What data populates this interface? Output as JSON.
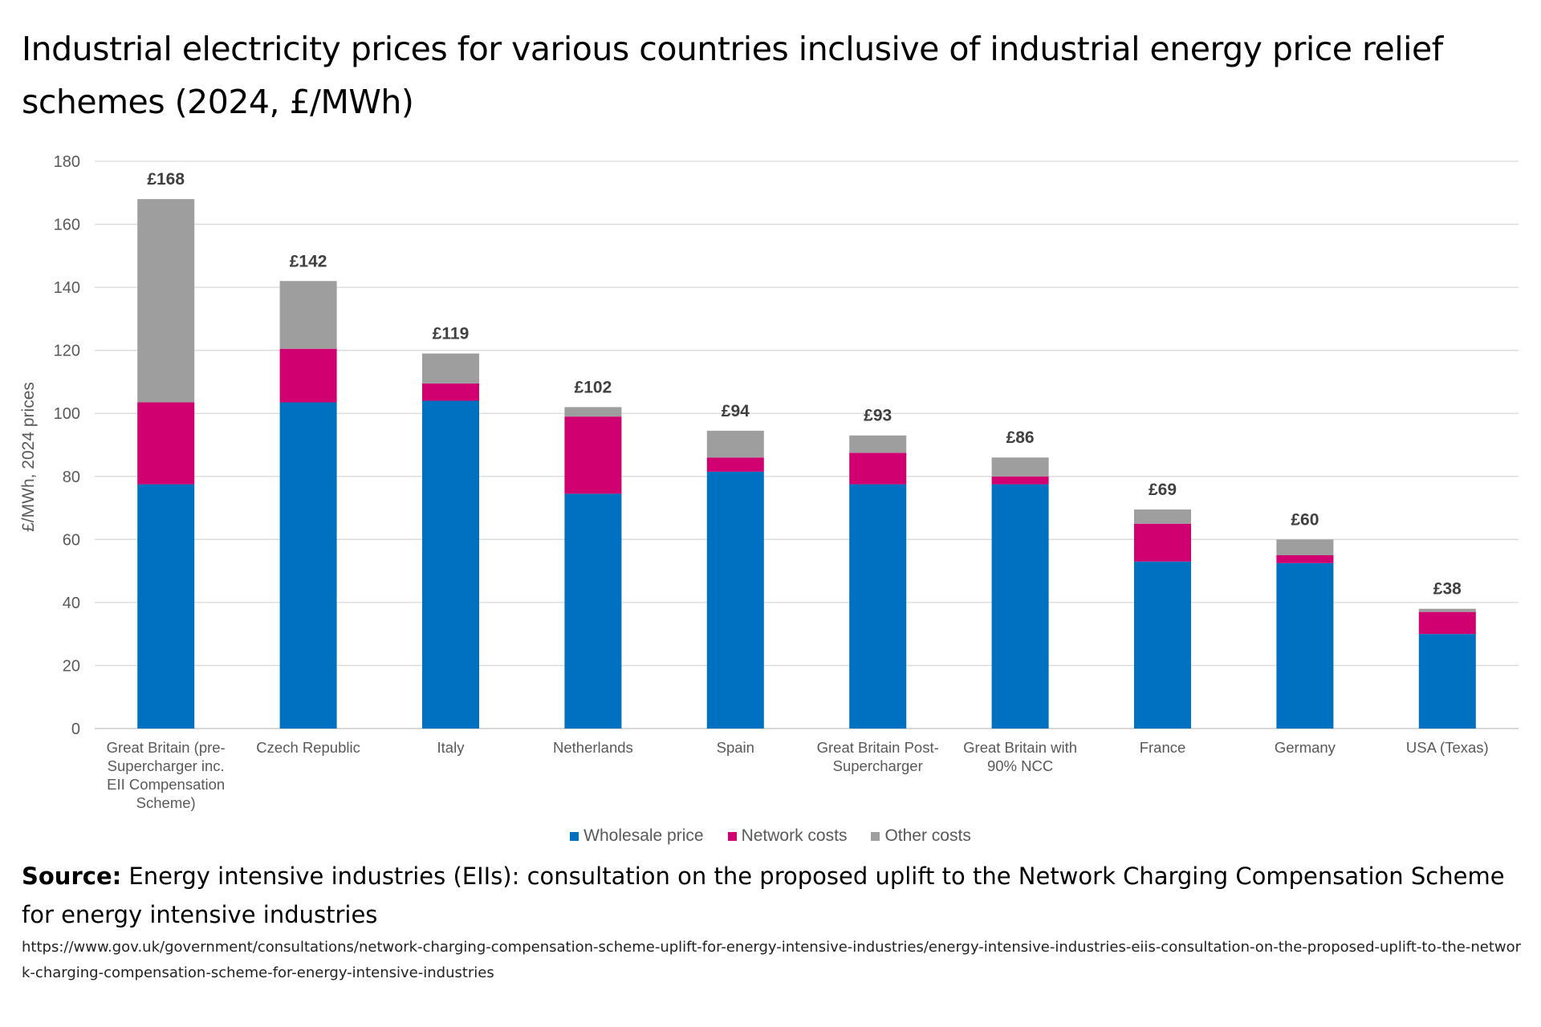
{
  "title": "Industrial electricity prices for various countries inclusive of industrial energy price relief schemes (2024, £/MWh)",
  "chart_data": {
    "type": "bar",
    "stacked": true,
    "ylabel": "£/MWh, 2024 prices",
    "xlabel": "",
    "ylim": [
      0,
      180
    ],
    "yticks": [
      0,
      20,
      40,
      60,
      80,
      100,
      120,
      140,
      160,
      180
    ],
    "grid": true,
    "legend_position": "bottom",
    "categories": [
      [
        "Great Britain (pre-",
        "Supercharger inc.",
        "EII Compensation",
        "Scheme)"
      ],
      [
        "Czech Republic"
      ],
      [
        "Italy"
      ],
      [
        "Netherlands"
      ],
      [
        "Spain"
      ],
      [
        "Great Britain Post-",
        "Supercharger"
      ],
      [
        "Great Britain with",
        "90% NCC"
      ],
      [
        "France"
      ],
      [
        "Germany"
      ],
      [
        "USA (Texas)"
      ]
    ],
    "series": [
      {
        "name": "Wholesale price",
        "color": "#0070c0",
        "values": [
          77.5,
          103.5,
          104,
          74.5,
          81.5,
          77.5,
          77.5,
          53,
          52.5,
          30
        ]
      },
      {
        "name": "Network costs",
        "color": "#d00070",
        "values": [
          26,
          17,
          5.5,
          24.5,
          4.5,
          10,
          2.5,
          12,
          2.5,
          7
        ]
      },
      {
        "name": "Other costs",
        "color": "#9e9e9e",
        "values": [
          64.5,
          21.5,
          9.5,
          3,
          8.5,
          5.5,
          6,
          4.5,
          5,
          1
        ]
      }
    ],
    "total_labels": [
      "£168",
      "£142",
      "£119",
      "£102",
      "£94",
      "£93",
      "£86",
      "£69",
      "£60",
      "£38"
    ]
  },
  "source": {
    "label": "Source:",
    "text": " Energy intensive industries (EIIs): consultation on the proposed uplift to the Network Charging Compensation Scheme for energy intensive industries",
    "url": "https://www.gov.uk/government/consultations/network-charging-compensation-scheme-uplift-for-energy-intensive-industries/energy-intensive-industries-eiis-consultation-on-the-proposed-uplift-to-the-network-charging-compensation-scheme-for-energy-intensive-industries"
  }
}
